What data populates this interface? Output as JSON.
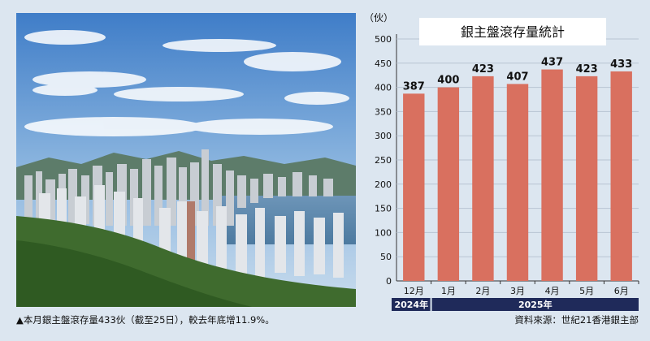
{
  "caption": "▲本月銀主盤滾存量433伙（截至25日），較去年底增11.9%。",
  "source": "資料來源：世紀21香港銀主部",
  "chart_data": {
    "type": "bar",
    "title": "銀主盤滾存量統計",
    "ylabel": "（伙）",
    "ylim": [
      0,
      500
    ],
    "yticks": [
      0,
      50,
      100,
      150,
      200,
      250,
      300,
      350,
      400,
      450,
      500
    ],
    "grid": true,
    "categories": [
      "12月",
      "1月",
      "2月",
      "3月",
      "4月",
      "5月",
      "6月"
    ],
    "values": [
      387,
      400,
      423,
      407,
      437,
      423,
      433
    ],
    "year_groups": [
      {
        "label": "2024年",
        "span": 1
      },
      {
        "label": "2025年",
        "span": 6
      }
    ],
    "colors": {
      "bar": "#d9705f",
      "title_bg": "#ffffff",
      "year_bar": "#1f2a5a",
      "grid": "#b8c4d2"
    }
  }
}
